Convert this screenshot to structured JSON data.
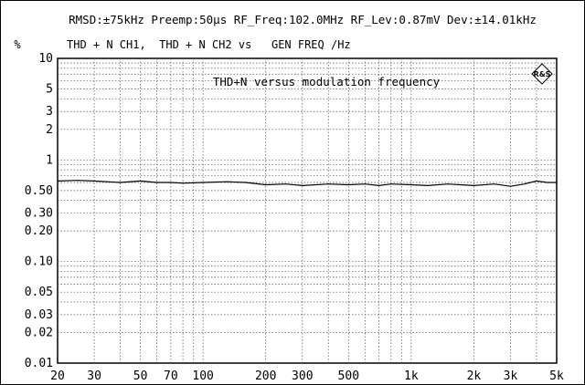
{
  "chart_data": {
    "type": "line",
    "header": "RMSD:±75kHz Preemp:50µs RF_Freq:102.0MHz RF_Lev:0.87mV Dev:±14.01kHz",
    "ylabel": "%",
    "legend_text": "THD + N CH1,  THD + N CH2 vs   GEN FREQ /Hz",
    "annotation": "THD+N versus modulation frequency",
    "logo_text": "R&S",
    "x_scale": "log",
    "y_scale": "log",
    "xlim": [
      20,
      5000
    ],
    "ylim": [
      0.01,
      10
    ],
    "grid": true,
    "x_ticks": [
      {
        "value": 20,
        "label": "20"
      },
      {
        "value": 30,
        "label": "30"
      },
      {
        "value": 50,
        "label": "50"
      },
      {
        "value": 70,
        "label": "70"
      },
      {
        "value": 100,
        "label": "100"
      },
      {
        "value": 200,
        "label": "200"
      },
      {
        "value": 300,
        "label": "300"
      },
      {
        "value": 500,
        "label": "500"
      },
      {
        "value": 1000,
        "label": "1k"
      },
      {
        "value": 2000,
        "label": "2k"
      },
      {
        "value": 3000,
        "label": "3k"
      },
      {
        "value": 5000,
        "label": "5k"
      }
    ],
    "y_ticks": [
      {
        "value": 10,
        "label": "10"
      },
      {
        "value": 5,
        "label": "5"
      },
      {
        "value": 3,
        "label": "3"
      },
      {
        "value": 2,
        "label": "2"
      },
      {
        "value": 1,
        "label": "1"
      },
      {
        "value": 0.5,
        "label": "0.50"
      },
      {
        "value": 0.3,
        "label": "0.30"
      },
      {
        "value": 0.2,
        "label": "0.20"
      },
      {
        "value": 0.1,
        "label": "0.10"
      },
      {
        "value": 0.05,
        "label": "0.05"
      },
      {
        "value": 0.03,
        "label": "0.03"
      },
      {
        "value": 0.02,
        "label": "0.02"
      },
      {
        "value": 0.01,
        "label": "0.01"
      }
    ],
    "series": [
      {
        "color": "#000000",
        "x": [
          20,
          25,
          30,
          40,
          50,
          60,
          70,
          80,
          100,
          130,
          160,
          200,
          250,
          300,
          400,
          500,
          600,
          700,
          800,
          1000,
          1200,
          1500,
          2000,
          2500,
          3000,
          3500,
          4000,
          4500,
          5000
        ],
        "y": [
          0.62,
          0.63,
          0.62,
          0.6,
          0.62,
          0.6,
          0.6,
          0.59,
          0.6,
          0.61,
          0.6,
          0.57,
          0.58,
          0.56,
          0.58,
          0.57,
          0.58,
          0.56,
          0.58,
          0.57,
          0.56,
          0.58,
          0.56,
          0.58,
          0.55,
          0.58,
          0.62,
          0.6,
          0.6
        ]
      }
    ]
  }
}
